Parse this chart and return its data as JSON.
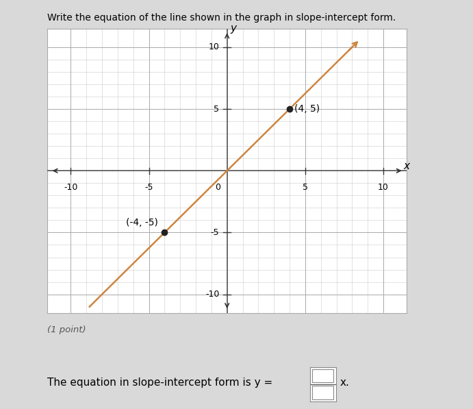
{
  "title": "Write the equation of the line shown in the graph in slope-intercept form.",
  "xlabel": "x",
  "ylabel": "y",
  "xlim": [
    -11.5,
    11.5
  ],
  "ylim": [
    -11.5,
    11.5
  ],
  "xticks": [
    -10,
    -5,
    0,
    5,
    10
  ],
  "yticks": [
    -10,
    -5,
    0,
    5,
    10
  ],
  "point1": [
    -4,
    -5
  ],
  "point2": [
    4,
    5
  ],
  "line_color": "#cd853f",
  "point_color": "#222222",
  "point_size": 6,
  "bg_color": "#d9d9d9",
  "plot_bg_color": "#ffffff",
  "plot_border_color": "#aaaaaa",
  "label1": "(-4, -5)",
  "label2": "(4, 5)",
  "annotation_fontsize": 10,
  "subtitle": "(1 point)",
  "equation_text": "The equation in slope-intercept form is y = ",
  "numerator": "",
  "denominator": "",
  "axis_label_fontsize": 11,
  "tick_fontsize": 9,
  "slope_num": 5,
  "slope_den": 4,
  "intercept": 0,
  "line_x_start": -8.8,
  "line_x_end": 8.0
}
